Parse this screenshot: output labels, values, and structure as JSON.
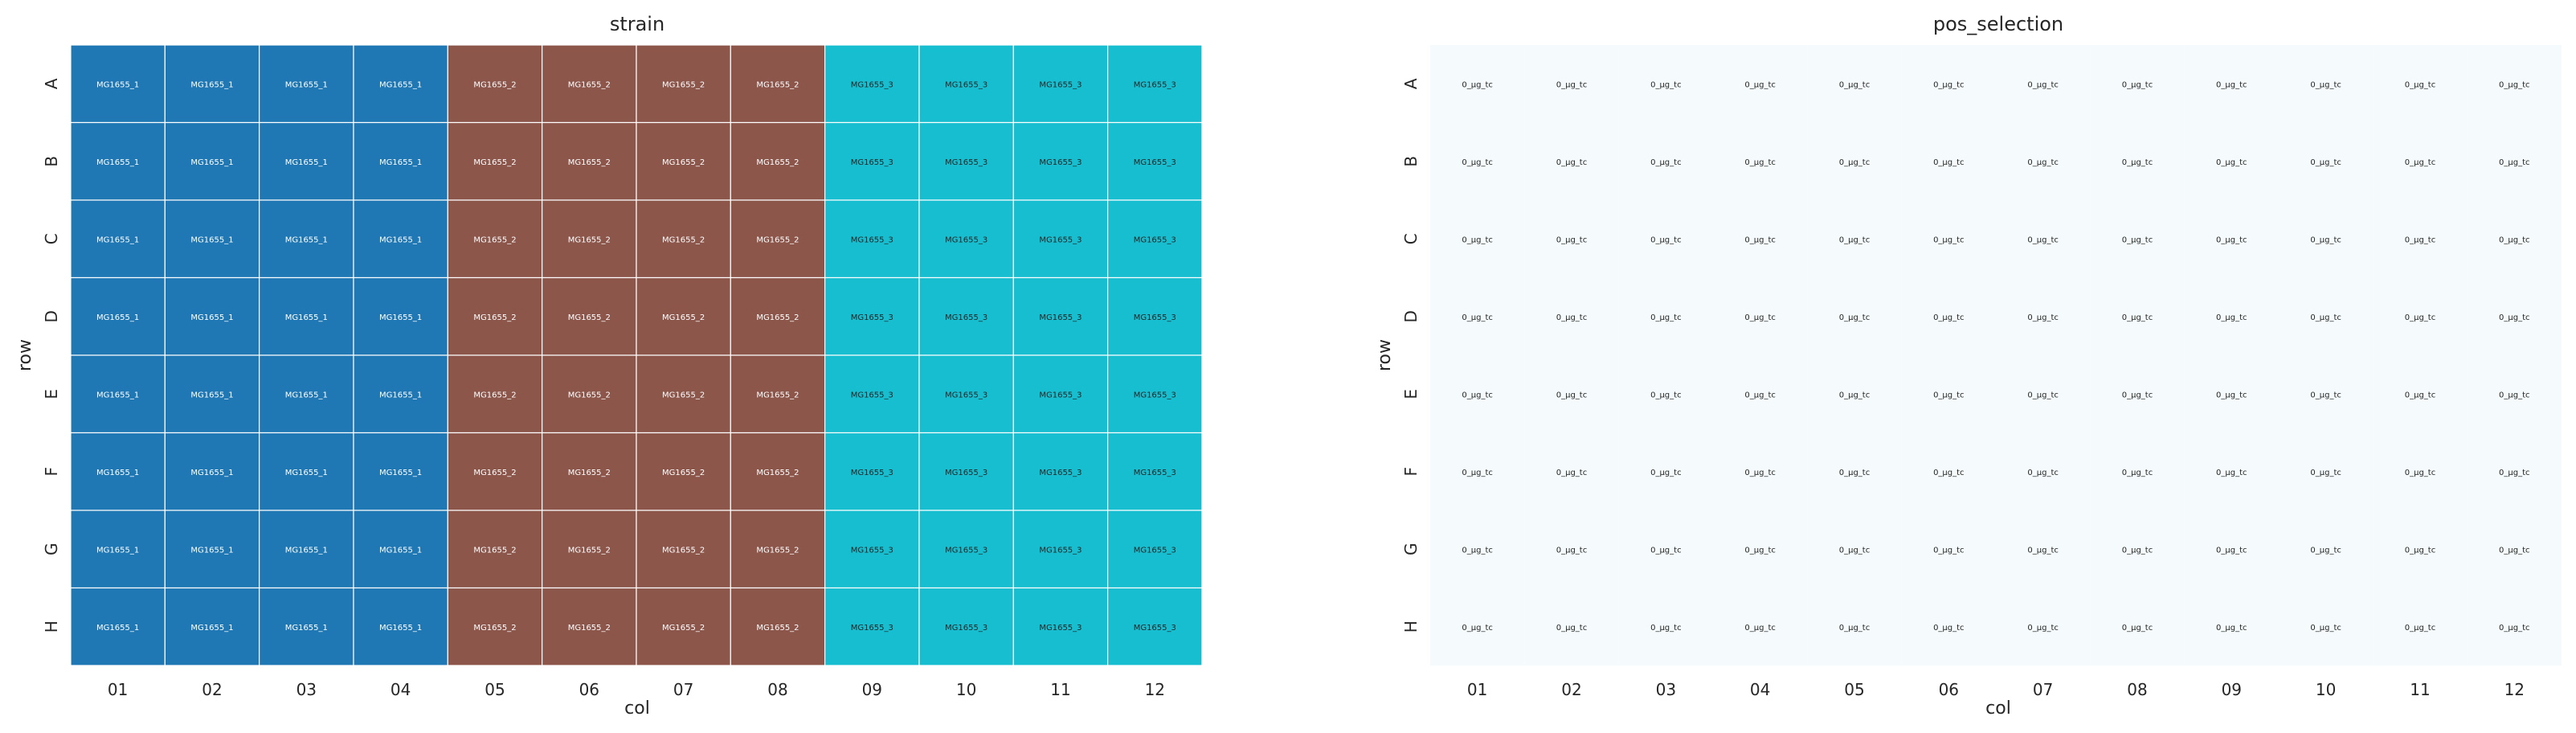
{
  "chart_data": [
    {
      "type": "heatmap",
      "title": "strain",
      "xlabel": "col",
      "ylabel": "row",
      "rows": [
        "A",
        "B",
        "C",
        "D",
        "E",
        "F",
        "G",
        "H"
      ],
      "cols": [
        "01",
        "02",
        "03",
        "04",
        "05",
        "06",
        "07",
        "08",
        "09",
        "10",
        "11",
        "12"
      ],
      "categories": [
        {
          "name": "MG1655_1",
          "color": "#1f77b4",
          "text_color": "#ffffff"
        },
        {
          "name": "MG1655_2",
          "color": "#8c564b",
          "text_color": "#ffffff"
        },
        {
          "name": "MG1655_3",
          "color": "#17becf",
          "text_color": "#262626"
        }
      ],
      "grid": true,
      "cells": [
        [
          "MG1655_1",
          "MG1655_1",
          "MG1655_1",
          "MG1655_1",
          "MG1655_2",
          "MG1655_2",
          "MG1655_2",
          "MG1655_2",
          "MG1655_3",
          "MG1655_3",
          "MG1655_3",
          "MG1655_3"
        ],
        [
          "MG1655_1",
          "MG1655_1",
          "MG1655_1",
          "MG1655_1",
          "MG1655_2",
          "MG1655_2",
          "MG1655_2",
          "MG1655_2",
          "MG1655_3",
          "MG1655_3",
          "MG1655_3",
          "MG1655_3"
        ],
        [
          "MG1655_1",
          "MG1655_1",
          "MG1655_1",
          "MG1655_1",
          "MG1655_2",
          "MG1655_2",
          "MG1655_2",
          "MG1655_2",
          "MG1655_3",
          "MG1655_3",
          "MG1655_3",
          "MG1655_3"
        ],
        [
          "MG1655_1",
          "MG1655_1",
          "MG1655_1",
          "MG1655_1",
          "MG1655_2",
          "MG1655_2",
          "MG1655_2",
          "MG1655_2",
          "MG1655_3",
          "MG1655_3",
          "MG1655_3",
          "MG1655_3"
        ],
        [
          "MG1655_1",
          "MG1655_1",
          "MG1655_1",
          "MG1655_1",
          "MG1655_2",
          "MG1655_2",
          "MG1655_2",
          "MG1655_2",
          "MG1655_3",
          "MG1655_3",
          "MG1655_3",
          "MG1655_3"
        ],
        [
          "MG1655_1",
          "MG1655_1",
          "MG1655_1",
          "MG1655_1",
          "MG1655_2",
          "MG1655_2",
          "MG1655_2",
          "MG1655_2",
          "MG1655_3",
          "MG1655_3",
          "MG1655_3",
          "MG1655_3"
        ],
        [
          "MG1655_1",
          "MG1655_1",
          "MG1655_1",
          "MG1655_1",
          "MG1655_2",
          "MG1655_2",
          "MG1655_2",
          "MG1655_2",
          "MG1655_3",
          "MG1655_3",
          "MG1655_3",
          "MG1655_3"
        ],
        [
          "MG1655_1",
          "MG1655_1",
          "MG1655_1",
          "MG1655_1",
          "MG1655_2",
          "MG1655_2",
          "MG1655_2",
          "MG1655_2",
          "MG1655_3",
          "MG1655_3",
          "MG1655_3",
          "MG1655_3"
        ]
      ]
    },
    {
      "type": "heatmap",
      "title": "pos_selection",
      "xlabel": "col",
      "ylabel": "row",
      "rows": [
        "A",
        "B",
        "C",
        "D",
        "E",
        "F",
        "G",
        "H"
      ],
      "cols": [
        "01",
        "02",
        "03",
        "04",
        "05",
        "06",
        "07",
        "08",
        "09",
        "10",
        "11",
        "12"
      ],
      "categories": [
        {
          "name": "0_µg_tc",
          "color": "#f5fbfc",
          "text_color": "#262626"
        }
      ],
      "grid": false,
      "cells": [
        [
          "0_µg_tc",
          "0_µg_tc",
          "0_µg_tc",
          "0_µg_tc",
          "0_µg_tc",
          "0_µg_tc",
          "0_µg_tc",
          "0_µg_tc",
          "0_µg_tc",
          "0_µg_tc",
          "0_µg_tc",
          "0_µg_tc"
        ],
        [
          "0_µg_tc",
          "0_µg_tc",
          "0_µg_tc",
          "0_µg_tc",
          "0_µg_tc",
          "0_µg_tc",
          "0_µg_tc",
          "0_µg_tc",
          "0_µg_tc",
          "0_µg_tc",
          "0_µg_tc",
          "0_µg_tc"
        ],
        [
          "0_µg_tc",
          "0_µg_tc",
          "0_µg_tc",
          "0_µg_tc",
          "0_µg_tc",
          "0_µg_tc",
          "0_µg_tc",
          "0_µg_tc",
          "0_µg_tc",
          "0_µg_tc",
          "0_µg_tc",
          "0_µg_tc"
        ],
        [
          "0_µg_tc",
          "0_µg_tc",
          "0_µg_tc",
          "0_µg_tc",
          "0_µg_tc",
          "0_µg_tc",
          "0_µg_tc",
          "0_µg_tc",
          "0_µg_tc",
          "0_µg_tc",
          "0_µg_tc",
          "0_µg_tc"
        ],
        [
          "0_µg_tc",
          "0_µg_tc",
          "0_µg_tc",
          "0_µg_tc",
          "0_µg_tc",
          "0_µg_tc",
          "0_µg_tc",
          "0_µg_tc",
          "0_µg_tc",
          "0_µg_tc",
          "0_µg_tc",
          "0_µg_tc"
        ],
        [
          "0_µg_tc",
          "0_µg_tc",
          "0_µg_tc",
          "0_µg_tc",
          "0_µg_tc",
          "0_µg_tc",
          "0_µg_tc",
          "0_µg_tc",
          "0_µg_tc",
          "0_µg_tc",
          "0_µg_tc",
          "0_µg_tc"
        ],
        [
          "0_µg_tc",
          "0_µg_tc",
          "0_µg_tc",
          "0_µg_tc",
          "0_µg_tc",
          "0_µg_tc",
          "0_µg_tc",
          "0_µg_tc",
          "0_µg_tc",
          "0_µg_tc",
          "0_µg_tc",
          "0_µg_tc"
        ],
        [
          "0_µg_tc",
          "0_µg_tc",
          "0_µg_tc",
          "0_µg_tc",
          "0_µg_tc",
          "0_µg_tc",
          "0_µg_tc",
          "0_µg_tc",
          "0_µg_tc",
          "0_µg_tc",
          "0_µg_tc",
          "0_µg_tc"
        ]
      ]
    }
  ]
}
